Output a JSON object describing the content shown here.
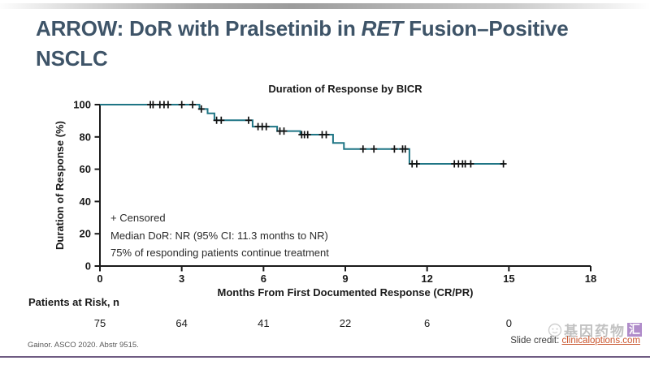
{
  "slide": {
    "title_prefix": "ARROW: DoR with Pralsetinib in ",
    "title_italic": "RET",
    "title_suffix": " Fusion–Positive NSCLC",
    "source": "Gainor. ASCO 2020. Abstr 9515.",
    "credit_label": "Slide credit: ",
    "credit_link": "clinicaloptions.com",
    "watermark_text": "基因药物",
    "watermark_badge": "汇"
  },
  "chart_data": {
    "type": "line",
    "subtype": "kaplan-meier-step",
    "title": "Duration of Response by BICR",
    "xlabel": "Months From First Documented Response (CR/PR)",
    "ylabel": "Duration of Response (%)",
    "xlim": [
      0,
      18
    ],
    "ylim": [
      0,
      100
    ],
    "x_ticks": [
      0,
      3,
      6,
      9,
      12,
      15,
      18
    ],
    "y_ticks": [
      0,
      20,
      40,
      60,
      80,
      100
    ],
    "grid": false,
    "line_color": "#1f7585",
    "censor_color": "#111111",
    "km_steps": [
      [
        0,
        100
      ],
      [
        3.65,
        100
      ],
      [
        3.65,
        97.3
      ],
      [
        3.95,
        97.3
      ],
      [
        3.95,
        94.6
      ],
      [
        4.2,
        94.6
      ],
      [
        4.2,
        90.3
      ],
      [
        5.6,
        90.3
      ],
      [
        5.6,
        86.4
      ],
      [
        6.5,
        86.4
      ],
      [
        6.5,
        83.6
      ],
      [
        7.35,
        83.6
      ],
      [
        7.35,
        81.4
      ],
      [
        8.55,
        81.4
      ],
      [
        8.55,
        76.3
      ],
      [
        8.95,
        76.3
      ],
      [
        8.95,
        72.5
      ],
      [
        11.35,
        72.5
      ],
      [
        11.35,
        63.3
      ],
      [
        14.85,
        63.3
      ]
    ],
    "censor_marks": [
      [
        1.85,
        100
      ],
      [
        1.95,
        100
      ],
      [
        2.2,
        100
      ],
      [
        2.35,
        100
      ],
      [
        2.5,
        100
      ],
      [
        3.0,
        100
      ],
      [
        3.4,
        100
      ],
      [
        3.72,
        97.3
      ],
      [
        4.28,
        90.3
      ],
      [
        4.45,
        90.3
      ],
      [
        5.45,
        90.3
      ],
      [
        5.8,
        86.4
      ],
      [
        5.95,
        86.4
      ],
      [
        6.1,
        86.4
      ],
      [
        6.6,
        83.6
      ],
      [
        6.75,
        83.6
      ],
      [
        7.4,
        81.4
      ],
      [
        7.5,
        81.4
      ],
      [
        7.62,
        81.4
      ],
      [
        8.15,
        81.4
      ],
      [
        8.3,
        81.4
      ],
      [
        9.65,
        72.5
      ],
      [
        10.05,
        72.5
      ],
      [
        10.8,
        72.5
      ],
      [
        11.1,
        72.5
      ],
      [
        11.2,
        72.5
      ],
      [
        11.45,
        63.3
      ],
      [
        11.62,
        63.3
      ],
      [
        13.0,
        63.3
      ],
      [
        13.15,
        63.3
      ],
      [
        13.3,
        63.3
      ],
      [
        13.4,
        63.3
      ],
      [
        13.6,
        63.3
      ],
      [
        14.8,
        63.3
      ]
    ],
    "annotations": [
      "+ Censored",
      "Median DoR: NR (95% CI: 11.3 months to NR)",
      "75% of responding patients continue treatment"
    ],
    "risk_table": {
      "label": "Patients at Risk, n",
      "months": [
        0,
        3,
        6,
        9,
        12,
        15
      ],
      "values": [
        75,
        64,
        41,
        22,
        6,
        0
      ]
    }
  }
}
